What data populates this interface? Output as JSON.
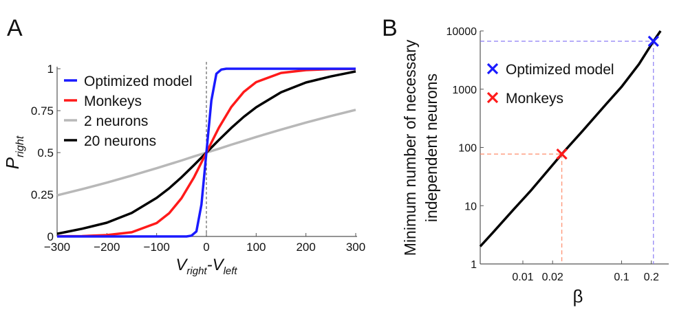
{
  "chart_data": [
    {
      "panel_label": "A",
      "type": "line",
      "xlabel_main": "V",
      "xlabel_sub1": "right",
      "xlabel_mid": "-V",
      "xlabel_sub2": "left",
      "ylabel_main": "P",
      "ylabel_sub": "right",
      "xlim": [
        -300,
        300
      ],
      "ylim": [
        0,
        1
      ],
      "xticks": [
        "−300",
        "−200",
        "−100",
        "0",
        "100",
        "200",
        "300"
      ],
      "xtick_values": [
        -300,
        -200,
        -100,
        0,
        100,
        200,
        300
      ],
      "yticks": [
        "0",
        "0.25",
        "0.5",
        "0.75",
        "1"
      ],
      "ytick_values": [
        0,
        0.25,
        0.5,
        0.75,
        1
      ],
      "vline_at": 0,
      "legend_position": "top-left",
      "series": [
        {
          "name": "Optimized model",
          "color": "#1a1aff",
          "x": [
            -300,
            -40,
            -30,
            -20,
            -10,
            0,
            10,
            20,
            30,
            40,
            300
          ],
          "y": [
            0,
            0,
            0.005,
            0.03,
            0.19,
            0.5,
            0.81,
            0.97,
            0.995,
            1,
            1
          ]
        },
        {
          "name": "Monkeys",
          "color": "#ff1a1a",
          "x": [
            -300,
            -250,
            -200,
            -150,
            -100,
            -75,
            -50,
            -25,
            0,
            25,
            50,
            75,
            100,
            150,
            200,
            250,
            300
          ],
          "y": [
            0.001,
            0.002,
            0.008,
            0.025,
            0.08,
            0.138,
            0.228,
            0.352,
            0.5,
            0.648,
            0.772,
            0.862,
            0.92,
            0.975,
            0.992,
            0.998,
            0.999
          ]
        },
        {
          "name": "2 neurons",
          "color": "#b8b8b8",
          "x": [
            -300,
            -250,
            -200,
            -150,
            -100,
            -75,
            -50,
            -25,
            0,
            25,
            50,
            75,
            100,
            150,
            200,
            250,
            300
          ],
          "y": [
            0.245,
            0.282,
            0.321,
            0.363,
            0.407,
            0.43,
            0.453,
            0.477,
            0.5,
            0.523,
            0.547,
            0.57,
            0.593,
            0.637,
            0.679,
            0.718,
            0.755
          ]
        },
        {
          "name": "20 neurons",
          "color": "#000000",
          "x": [
            -300,
            -250,
            -200,
            -150,
            -100,
            -75,
            -50,
            -25,
            0,
            25,
            50,
            75,
            100,
            150,
            200,
            250,
            300
          ],
          "y": [
            0.016,
            0.046,
            0.082,
            0.14,
            0.23,
            0.287,
            0.353,
            0.425,
            0.5,
            0.575,
            0.647,
            0.713,
            0.77,
            0.86,
            0.918,
            0.954,
            0.984
          ]
        }
      ]
    },
    {
      "panel_label": "B",
      "type": "line",
      "xscale": "log",
      "yscale": "log",
      "xlabel": "β",
      "ylabel_line1": "Minimum number of necessary",
      "ylabel_line2": "independent neurons",
      "xlim": [
        0.0037,
        0.3
      ],
      "ylim": [
        1,
        10000
      ],
      "xticks": [
        "0.01",
        "0.02",
        "0.1",
        "0.2"
      ],
      "xtick_values": [
        0.01,
        0.02,
        0.1,
        0.2
      ],
      "yticks": [
        "1",
        "10",
        "100",
        "1000",
        "10000"
      ],
      "ytick_values": [
        1,
        10,
        100,
        1000,
        10000
      ],
      "legend_position": "upper-left",
      "curve": {
        "color": "#000000",
        "x": [
          0.0037,
          0.005,
          0.008,
          0.012,
          0.02,
          0.0248,
          0.04,
          0.07,
          0.1,
          0.15,
          0.21,
          0.248
        ],
        "y": [
          2.0,
          3.5,
          8.5,
          18,
          50,
          77,
          190,
          560,
          1100,
          2700,
          6650,
          10000
        ]
      },
      "markers": [
        {
          "name": "Optimized model",
          "color": "#1a1aff",
          "guide_color": "#8a7cf5",
          "x": 0.21,
          "y": 6650
        },
        {
          "name": "Monkeys",
          "color": "#ff1a1a",
          "guide_color": "#ff8c6a",
          "x": 0.0248,
          "y": 77
        }
      ]
    }
  ]
}
